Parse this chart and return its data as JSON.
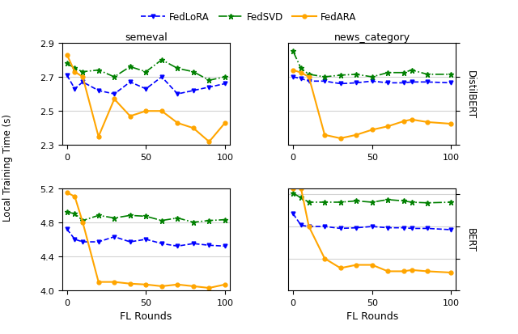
{
  "title_left_top": "semeval",
  "title_right_top": "news_category",
  "ylabel_right_top": "DistilBERT",
  "ylabel_right_bottom": "BERT",
  "xlabel": "FL Rounds",
  "ylabel_shared": "Local Training Time (s)",
  "legend_labels": [
    "FedLoRA",
    "FedSVD",
    "FedARA"
  ],
  "fedlora_color": "#0000FF",
  "fedsvd_color": "#008000",
  "fedara_color": "#FFA500",
  "rounds_tl": [
    0,
    5,
    10,
    20,
    30,
    40,
    50,
    60,
    70,
    80,
    90,
    100
  ],
  "fedlora_tl": [
    2.71,
    2.63,
    2.67,
    2.62,
    2.6,
    2.67,
    2.63,
    2.7,
    2.6,
    2.62,
    2.64,
    2.66
  ],
  "fedsvd_tl": [
    2.78,
    2.75,
    2.73,
    2.74,
    2.7,
    2.76,
    2.73,
    2.8,
    2.75,
    2.73,
    2.68,
    2.7
  ],
  "fedara_tl": [
    2.83,
    2.73,
    2.7,
    2.35,
    2.57,
    2.47,
    2.5,
    2.5,
    2.43,
    2.4,
    2.32,
    2.43
  ],
  "rounds_tr": [
    0,
    5,
    10,
    20,
    30,
    40,
    50,
    60,
    70,
    75,
    85,
    100
  ],
  "fedlora_tr": [
    3.7,
    3.68,
    3.65,
    3.65,
    3.62,
    3.63,
    3.65,
    3.63,
    3.63,
    3.64,
    3.64,
    3.63
  ],
  "fedsvd_tr": [
    4.0,
    3.8,
    3.73,
    3.7,
    3.72,
    3.73,
    3.7,
    3.75,
    3.75,
    3.78,
    3.73,
    3.73
  ],
  "fedara_tr": [
    3.78,
    3.75,
    3.7,
    3.02,
    2.98,
    3.02,
    3.08,
    3.12,
    3.18,
    3.2,
    3.17,
    3.15
  ],
  "rounds_bl": [
    0,
    5,
    10,
    20,
    30,
    40,
    50,
    60,
    70,
    80,
    90,
    100
  ],
  "fedlora_bl": [
    4.72,
    4.6,
    4.57,
    4.57,
    4.63,
    4.57,
    4.6,
    4.55,
    4.52,
    4.55,
    4.53,
    4.52
  ],
  "fedsvd_bl": [
    4.92,
    4.9,
    4.82,
    4.88,
    4.85,
    4.88,
    4.87,
    4.82,
    4.85,
    4.8,
    4.82,
    4.83
  ],
  "fedara_bl": [
    5.15,
    5.1,
    4.8,
    4.1,
    4.1,
    4.08,
    4.07,
    4.05,
    4.07,
    4.05,
    4.03,
    4.07
  ],
  "rounds_br": [
    0,
    5,
    10,
    20,
    30,
    40,
    50,
    60,
    70,
    75,
    85,
    100
  ],
  "fedlora_br": [
    6.7,
    6.52,
    6.5,
    6.5,
    6.47,
    6.48,
    6.5,
    6.48,
    6.48,
    6.47,
    6.47,
    6.45
  ],
  "fedsvd_br": [
    7.02,
    6.95,
    6.88,
    6.88,
    6.88,
    6.9,
    6.88,
    6.92,
    6.9,
    6.88,
    6.87,
    6.88
  ],
  "fedara_br": [
    7.1,
    7.1,
    6.5,
    6.0,
    5.85,
    5.9,
    5.9,
    5.8,
    5.8,
    5.82,
    5.8,
    5.78
  ],
  "ylim_tl": [
    2.3,
    2.9
  ],
  "ylim_tr": [
    2.9,
    4.1
  ],
  "ylim_bl": [
    4.0,
    5.2
  ],
  "ylim_br": [
    5.5,
    7.1
  ],
  "yticks_tl": [
    2.3,
    2.5,
    2.7,
    2.9
  ],
  "yticks_tr": [
    2.9,
    3.3,
    3.7,
    4.1
  ],
  "yticks_bl": [
    4.0,
    4.4,
    4.8,
    5.2
  ],
  "yticks_br": [
    5.5,
    6.0,
    6.5,
    7.0
  ],
  "xticks": [
    0,
    50,
    100
  ]
}
